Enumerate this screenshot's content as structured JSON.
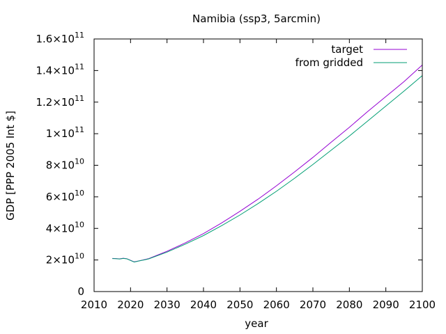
{
  "chart_data": {
    "type": "line",
    "title": "Namibia (ssp3, 5arcmin)",
    "xlabel": "year",
    "ylabel": "GDP [PPP 2005 Int $]",
    "xlim": [
      2010,
      2100
    ],
    "ylim": [
      0,
      160000000000
    ],
    "x_ticks": [
      2010,
      2020,
      2030,
      2040,
      2050,
      2060,
      2070,
      2080,
      2090,
      2100
    ],
    "y_ticks": [
      {
        "value": 0,
        "mant": "0",
        "exp": ""
      },
      {
        "value": 20000000000,
        "mant": "2×10",
        "exp": "10"
      },
      {
        "value": 40000000000,
        "mant": "4×10",
        "exp": "10"
      },
      {
        "value": 60000000000,
        "mant": "6×10",
        "exp": "10"
      },
      {
        "value": 80000000000,
        "mant": "8×10",
        "exp": "10"
      },
      {
        "value": 100000000000,
        "mant": "1×10",
        "exp": "11"
      },
      {
        "value": 120000000000,
        "mant": "1.2×10",
        "exp": "11"
      },
      {
        "value": 140000000000,
        "mant": "1.4×10",
        "exp": "11"
      },
      {
        "value": 160000000000,
        "mant": "1.6×10",
        "exp": "11"
      }
    ],
    "grid": false,
    "legend_position": "top-right",
    "x": [
      2015,
      2016,
      2017,
      2018,
      2019,
      2020,
      2021,
      2022,
      2023,
      2024,
      2025,
      2030,
      2035,
      2040,
      2045,
      2050,
      2055,
      2060,
      2065,
      2070,
      2075,
      2080,
      2085,
      2090,
      2095,
      2100
    ],
    "series": [
      {
        "name": "target",
        "color": "#9400d3",
        "values": [
          21000000000,
          20900000000,
          20700000000,
          21100000000,
          20800000000,
          19800000000,
          18800000000,
          19300000000,
          19800000000,
          20300000000,
          20900000000,
          25500000000,
          30800000000,
          36700000000,
          43500000000,
          50800000000,
          58600000000,
          67000000000,
          75800000000,
          85000000000,
          94600000000,
          104000000000,
          114000000000,
          123500000000,
          133000000000,
          143500000000
        ]
      },
      {
        "name": "from gridded",
        "color": "#009e73",
        "values": [
          20900000000,
          20800000000,
          20600000000,
          21000000000,
          20700000000,
          19700000000,
          18700000000,
          19200000000,
          19700000000,
          20200000000,
          20700000000,
          25000000000,
          30000000000,
          35500000000,
          41800000000,
          48500000000,
          55800000000,
          63500000000,
          71800000000,
          80500000000,
          89500000000,
          98500000000,
          108000000000,
          117500000000,
          127000000000,
          136800000000
        ]
      }
    ]
  }
}
